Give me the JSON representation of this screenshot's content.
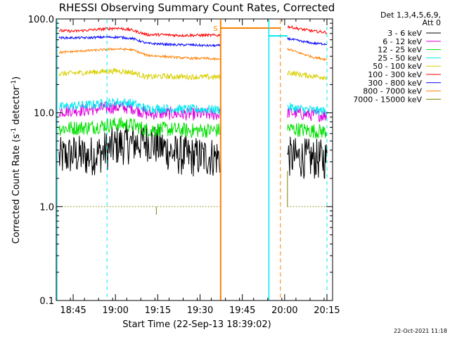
{
  "chart_data": {
    "type": "line",
    "title": "RHESSI Observing Summary Count Rates, Corrected",
    "xlabel": "Start Time (22-Sep-13 18:39:02)",
    "ylabel_main": "Corrected Count Rate (s",
    "ylabel_sup1": "-1",
    "ylabel_mid": " detector",
    "ylabel_sup2": "-1",
    "ylabel_end": ")",
    "yscale": "log",
    "ylim": [
      0.1,
      100
    ],
    "xlim_minutes": [
      0,
      98
    ],
    "x_ticks": [
      {
        "label": "18:45",
        "minute": 6
      },
      {
        "label": "19:00",
        "minute": 21
      },
      {
        "label": "19:15",
        "minute": 36
      },
      {
        "label": "19:30",
        "minute": 51
      },
      {
        "label": "19:45",
        "minute": 66
      },
      {
        "label": "20:00",
        "minute": 81
      },
      {
        "label": "20:15",
        "minute": 96
      }
    ],
    "y_ticks": [
      "0.1",
      "1.0",
      "10.0",
      "100.0"
    ],
    "legend_header": [
      "Det 1,3,4,5,6,9,",
      "Att 0"
    ],
    "legend_placement": "outside-right",
    "series": [
      {
        "name": "3 - 6 keV",
        "color": "#000000",
        "seg1": [
          3.3,
          3.6,
          3.4,
          3.8,
          4.5,
          4.7,
          5.0,
          4.3,
          3.6,
          3.4,
          3.4,
          3.4
        ],
        "seg2": [
          3.4,
          3.3,
          3.2,
          3.2
        ],
        "noise": 0.22
      },
      {
        "name": "6 - 12 keV",
        "color": "#e000e0",
        "seg1": [
          10.4,
          10.7,
          10.8,
          11.2,
          11.5,
          11.3,
          9.8,
          9.9,
          9.8,
          9.7,
          9.7,
          9.6
        ],
        "seg2": [
          10.2,
          9.8,
          9.5,
          9.4
        ],
        "noise": 0.07
      },
      {
        "name": "12 - 25 keV",
        "color": "#00e000",
        "seg1": [
          6.8,
          6.9,
          7.0,
          7.3,
          7.6,
          7.4,
          6.6,
          6.7,
          6.6,
          6.5,
          6.5,
          6.5
        ],
        "seg2": [
          6.8,
          6.6,
          6.4,
          6.3
        ],
        "noise": 0.08
      },
      {
        "name": "25 - 50 keV",
        "color": "#00e8f0",
        "seg1": [
          11.5,
          11.9,
          12.1,
          12.6,
          13.0,
          12.6,
          11.0,
          11.1,
          11.0,
          10.9,
          10.9,
          10.8
        ],
        "seg2": [
          11.5,
          11.0,
          10.6,
          10.4
        ],
        "noise": 0.05
      },
      {
        "name": "50 - 100 keV",
        "color": "#d8d000",
        "seg1": [
          26,
          26.5,
          27,
          27.5,
          28,
          27,
          24,
          24.5,
          24.3,
          24.2,
          24.1,
          24
        ],
        "seg2": [
          27,
          25.5,
          24.5,
          24
        ],
        "noise": 0.03
      },
      {
        "name": "100 - 300 keV",
        "color": "#ff0000",
        "seg1": [
          75,
          74,
          76,
          78,
          80,
          76,
          68,
          68,
          67,
          67,
          67,
          67
        ],
        "seg2": [
          83,
          78,
          74,
          72
        ],
        "noise": 0.015
      },
      {
        "name": "300 - 800 keV",
        "color": "#0000ff",
        "seg1": [
          63,
          63,
          63,
          64,
          64,
          62,
          55,
          54,
          53,
          53,
          52,
          52
        ],
        "seg2": [
          62,
          58,
          55,
          54
        ],
        "noise": 0.012
      },
      {
        "name": "800 - 7000 keV",
        "color": "#ff8000",
        "seg1": [
          44,
          45,
          46,
          47,
          48,
          47,
          41,
          40,
          39,
          38,
          38,
          37
        ],
        "seg2": [
          48,
          43,
          39,
          37
        ],
        "noise": 0.012
      },
      {
        "name": "7000 - 15000 keV",
        "color": "#808000",
        "seg1": [
          1.0,
          1.0,
          1.0,
          1.0,
          1.0,
          1.0,
          1.0,
          1.0,
          1.0,
          1.0,
          1.0,
          1.0
        ],
        "seg2": [
          1.0,
          1.0,
          1.0,
          1.0
        ],
        "noise": 0
      }
    ],
    "saa_flag_label": "S",
    "saa_level": 80,
    "cyan_plateau_level": 66
  },
  "footer_date": "22-Oct-2021 11:18"
}
